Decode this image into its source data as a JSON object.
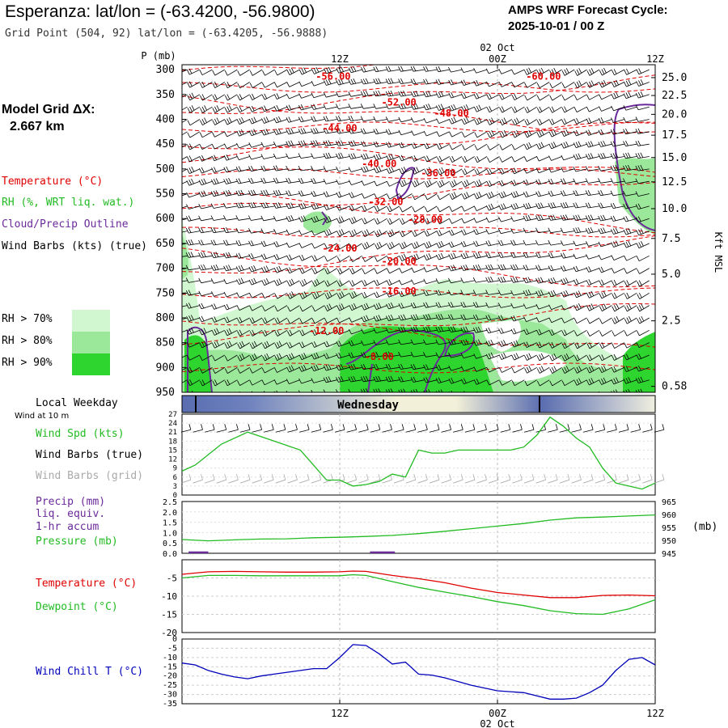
{
  "header": {
    "title": "Esperanza:  lat/lon = (-63.4200, -56.9800)",
    "subtitle": "Grid Point (504, 92) lat/lon = (-63.4205, -56.9888)",
    "cycle_line1": "AMPS WRF Forecast Cycle:",
    "cycle_line2": "2025-10-01 / 00  Z"
  },
  "left_panel": {
    "model_grid_line1": "Model Grid ΔX:",
    "model_grid_line2": "2.667 km",
    "temp_legend": "Temperature (°C)",
    "rh_legend": "RH (%, WRT liq. wat.)",
    "cloud_legend": "Cloud/Precip Outline",
    "wind_legend": "Wind Barbs (kts) (true)",
    "rh_levels": [
      "RH > 70%",
      "RH > 80%",
      "RH > 90%"
    ],
    "local_weekday": "Local Weekday",
    "wind_10m": "Wind at 10 m",
    "wind_spd": "Wind Spd (kts)",
    "barbs_true": "Wind Barbs (true)",
    "barbs_grid": "Wind Barbs (grid)",
    "precip_line1": "Precip (mm)",
    "precip_line2": "liq. equiv.",
    "precip_line3": "1-hr accum",
    "pressure": "Pressure (mb)",
    "temperature": "Temperature (°C)",
    "dewpoint": "Dewpoint (°C)",
    "wind_chill": "Wind Chill T (°C)"
  },
  "colors": {
    "temperature": "#e00000",
    "rh": "#22bb22",
    "cloud": "#6a2a9a",
    "wind": "#000000",
    "grid_barbs": "#aaaaaa",
    "wind_chill": "#0000bb",
    "rh70": "#d0f7d0",
    "rh80": "#9be89b",
    "rh90": "#2fd52f",
    "weekday_bar_dark": "#5a6db0",
    "weekday_bar_light": "#f2f0d8"
  },
  "chart_data": [
    {
      "type": "heatmap",
      "name": "cross-section",
      "y_axis_label": "P (mb)",
      "y_ticks": [
        300,
        350,
        400,
        450,
        500,
        550,
        600,
        650,
        700,
        750,
        800,
        850,
        900,
        950
      ],
      "ylim": [
        950,
        290
      ],
      "right_axis_label": "Kft MSL",
      "right_ticks": [
        "25.0",
        "22.5",
        "20.0",
        "17.5",
        "15.0",
        "12.5",
        "10.0",
        "7.5",
        "5.0",
        "2.5",
        "0.58"
      ],
      "right_tick_pressures": [
        316,
        352,
        390,
        432,
        477,
        526,
        580,
        640,
        712,
        806,
        938
      ],
      "x_label_top_date": "02 Oct",
      "x_ticks_top": [
        "12Z",
        "00Z",
        "12Z"
      ],
      "x_tick_hours": [
        12,
        24,
        36
      ],
      "xlim_hours": [
        0,
        36
      ],
      "temp_labels": [
        {
          "text": "-56.00",
          "hour": 11.5,
          "p": 314
        },
        {
          "text": "-60.00",
          "hour": 27.5,
          "p": 314
        },
        {
          "text": "-52.00",
          "hour": 16.5,
          "p": 366
        },
        {
          "text": "-48.00",
          "hour": 20.5,
          "p": 388
        },
        {
          "text": "-44.00",
          "hour": 12.0,
          "p": 418
        },
        {
          "text": "-40.00",
          "hour": 15.0,
          "p": 490
        },
        {
          "text": "-36.00",
          "hour": 19.5,
          "p": 508
        },
        {
          "text": "-32.00",
          "hour": 15.5,
          "p": 566
        },
        {
          "text": "-28.00",
          "hour": 18.5,
          "p": 602
        },
        {
          "text": "-24.00",
          "hour": 12.0,
          "p": 660
        },
        {
          "text": "-20.00",
          "hour": 16.5,
          "p": 686
        },
        {
          "text": "-16.00",
          "hour": 16.5,
          "p": 746
        },
        {
          "text": "-12.00",
          "hour": 11.0,
          "p": 826
        },
        {
          "text": "-8.00",
          "hour": 15.0,
          "p": 878
        }
      ]
    },
    {
      "type": "line",
      "name": "wind",
      "ylim": [
        0,
        27
      ],
      "y_ticks": [
        0,
        3,
        6,
        9,
        12,
        15,
        18,
        21,
        24,
        27
      ],
      "x_hours": [
        0,
        1,
        3,
        5,
        7,
        9,
        11,
        12,
        13,
        14,
        15,
        16,
        17,
        18,
        19,
        20,
        21,
        22,
        23,
        24,
        25,
        26,
        27,
        28,
        29,
        30,
        31,
        32,
        33,
        34,
        35,
        36
      ],
      "series": [
        {
          "values": [
            8,
            10,
            17,
            21,
            18,
            15,
            5,
            5,
            3,
            3.5,
            4.5,
            7,
            6,
            15,
            14,
            14,
            15,
            15,
            15,
            15,
            15,
            16,
            20,
            26,
            23,
            19,
            16,
            9,
            4,
            3,
            2,
            4
          ]
        }
      ]
    },
    {
      "type": "line",
      "name": "precip-pressure",
      "ylim_left": [
        0,
        2.5
      ],
      "y_ticks_left": [
        "0.0",
        "0.5",
        "1.0",
        "1.5",
        "2.0",
        "2.5"
      ],
      "ylim_right": [
        945,
        965
      ],
      "y_ticks_right": [
        "945",
        "950",
        "955",
        "960",
        "965"
      ],
      "right_unit": "(mb)",
      "x_hours": [
        0,
        2,
        4,
        6,
        8,
        10,
        12,
        14,
        16,
        18,
        20,
        22,
        24,
        26,
        28,
        30,
        32,
        34,
        36
      ],
      "series": [
        {
          "values": [
            950.3,
            949.8,
            950.2,
            950.5,
            950.6,
            951.0,
            951.2,
            951.5,
            951.9,
            952.6,
            953.5,
            954.5,
            955.5,
            956.5,
            957.8,
            958.7,
            959.0,
            959.4,
            959.8
          ]
        }
      ],
      "precip_bars": [
        {
          "start_hour": 0.5,
          "end_hour": 2.0,
          "value": 0.05
        },
        {
          "start_hour": 14.3,
          "end_hour": 16.2,
          "value": 0.05
        }
      ]
    },
    {
      "type": "line",
      "name": "temperature-dewpoint",
      "ylim": [
        -20,
        0
      ],
      "y_ticks": [
        "-5",
        "-10",
        "-15",
        "-20"
      ],
      "x_hours": [
        0,
        2,
        4,
        6,
        8,
        10,
        12,
        13,
        14,
        16,
        18,
        20,
        22,
        24,
        26,
        28,
        30,
        32,
        34,
        36
      ],
      "series": [
        {
          "values": [
            -4.0,
            -3.3,
            -3.2,
            -3.3,
            -3.4,
            -3.4,
            -3.3,
            -3.1,
            -3.2,
            -4.3,
            -5.2,
            -6.3,
            -7.8,
            -9.0,
            -9.7,
            -10.4,
            -10.4,
            -9.8,
            -9.7,
            -9.9
          ]
        },
        {
          "values": [
            -5.0,
            -4.3,
            -4.3,
            -4.4,
            -4.4,
            -4.4,
            -4.4,
            -4.1,
            -4.3,
            -6.0,
            -7.6,
            -8.9,
            -10.1,
            -11.5,
            -12.6,
            -14.0,
            -14.8,
            -15.0,
            -13.5,
            -11.0
          ]
        }
      ]
    },
    {
      "type": "line",
      "name": "wind-chill",
      "ylim": [
        -35,
        0
      ],
      "y_ticks": [
        "0",
        "-5",
        "-10",
        "-15",
        "-20",
        "-25",
        "-30",
        "-35"
      ],
      "x_label_bottom_date": "02 Oct",
      "x_ticks_bottom": [
        "12Z",
        "00Z",
        "12Z"
      ],
      "x_hours": [
        0,
        1,
        2,
        3,
        4,
        5,
        6,
        7,
        8,
        9,
        10,
        11,
        12,
        13,
        14,
        15,
        16,
        17,
        18,
        19,
        20,
        22,
        24,
        26,
        28,
        29,
        30,
        31,
        32,
        33,
        34,
        35,
        36
      ],
      "series": [
        {
          "values": [
            -13,
            -14,
            -17,
            -19,
            -20.5,
            -21.5,
            -20,
            -19,
            -18,
            -17,
            -16,
            -16,
            -10,
            -3,
            -3.5,
            -8,
            -13.5,
            -12.5,
            -19,
            -19.5,
            -21,
            -25,
            -28,
            -29,
            -32.5,
            -32.5,
            -32,
            -29,
            -25,
            -17,
            -11,
            -10,
            -14
          ]
        }
      ]
    }
  ],
  "weekday_bar": {
    "label": "Wednesday"
  }
}
